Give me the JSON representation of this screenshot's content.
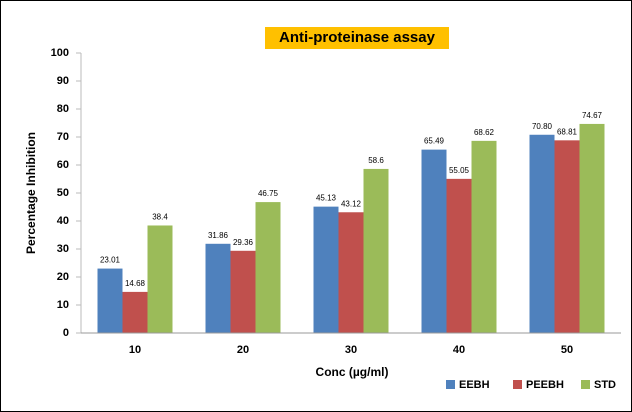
{
  "chart_data": {
    "type": "bar",
    "title": "Anti-proteinase assay",
    "x_label": "Conc (µg/ml)",
    "y_label": "Percentage Inhibition",
    "categories": [
      "10",
      "20",
      "30",
      "40",
      "50"
    ],
    "series": [
      {
        "name": "EEBH",
        "color": "#4f81bd",
        "values": [
          23.01,
          31.86,
          45.13,
          65.49,
          70.8
        ],
        "value_labels": [
          "23.01",
          "31.86",
          "45.13",
          "65.49",
          "70.80"
        ]
      },
      {
        "name": "PEEBH",
        "color": "#c0504d",
        "values": [
          14.68,
          29.36,
          43.12,
          55.05,
          68.81
        ]
      },
      {
        "name": "STD",
        "color": "#9bbb59",
        "values": [
          38.4,
          46.75,
          58.6,
          68.62,
          74.67
        ]
      }
    ],
    "ylim": [
      0,
      100
    ],
    "yticks": [
      0,
      10,
      20,
      30,
      40,
      50,
      60,
      70,
      80,
      90,
      100
    ],
    "grid": false,
    "legend": "bottom-right"
  }
}
